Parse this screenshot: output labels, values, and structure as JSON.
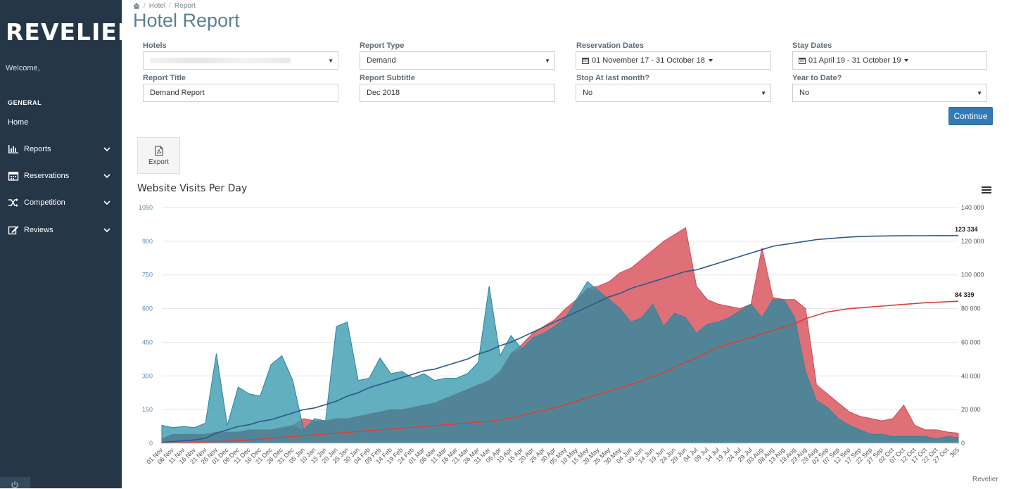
{
  "sidebar": {
    "logo": "REVELIER",
    "welcome": "Welcome,",
    "section": "GENERAL",
    "home": "Home",
    "items": [
      {
        "label": "Reports",
        "icon": "bar-chart-icon"
      },
      {
        "label": "Reservations",
        "icon": "calendar-icon"
      },
      {
        "label": "Competition",
        "icon": "shuffle-icon"
      },
      {
        "label": "Reviews",
        "icon": "edit-icon"
      }
    ]
  },
  "breadcrumb": {
    "items": [
      "Hotel",
      "Report"
    ]
  },
  "page_title": "Hotel Report",
  "form": {
    "hotels_label": "Hotels",
    "report_type_label": "Report Type",
    "report_type_value": "Demand",
    "reservation_dates_label": "Reservation Dates",
    "reservation_dates_value": "01 November 17 - 31 October 18",
    "stay_dates_label": "Stay Dates",
    "stay_dates_value": "01 April 19 - 31 October 19",
    "report_title_label": "Report Title",
    "report_title_value": "Demand Report",
    "report_subtitle_label": "Report Subtitle",
    "report_subtitle_value": "Dec 2018",
    "stop_label": "Stop At last month?",
    "stop_value": "No",
    "ytd_label": "Year to Date?",
    "ytd_value": "No",
    "continue_label": "Continue"
  },
  "export_label": "Export",
  "credit": "Revelier",
  "colors": {
    "sidebar": "#253647",
    "teal": "#3b9bb0",
    "red": "#d9575f",
    "blue_line": "#2b5a8c",
    "red_line": "#d9403a",
    "button": "#337ab7"
  },
  "chart_data": {
    "type": "area",
    "title": "Website Visits Per Day",
    "ylim_left": [
      0,
      1050
    ],
    "yticks_left": [
      "1050",
      "900",
      "750",
      "600",
      "450",
      "300",
      "150",
      "0"
    ],
    "ylim_right": [
      0,
      140000
    ],
    "yticks_right": [
      "140 000",
      "120 000",
      "100 000",
      "80 000",
      "60 000",
      "40 000",
      "20 000",
      "0"
    ],
    "x_labels": [
      "01 Nov",
      "06 Nov",
      "11 Nov",
      "16 Nov",
      "21 Nov",
      "26 Nov",
      "01 Dec",
      "06 Dec",
      "11 Dec",
      "16 Dec",
      "21 Dec",
      "26 Dec",
      "31 Dec",
      "05 Jan",
      "10 Jan",
      "15 Jan",
      "20 Jan",
      "25 Jan",
      "30 Jan",
      "04 Feb",
      "09 Feb",
      "14 Feb",
      "19 Feb",
      "24 Feb",
      "01 Mar",
      "06 Mar",
      "11 Mar",
      "16 Mar",
      "21 Mar",
      "26 Mar",
      "31 Mar",
      "05 Apr",
      "10 Apr",
      "15 Apr",
      "20 Apr",
      "25 Apr",
      "30 Apr",
      "05 May",
      "10 May",
      "15 May",
      "20 May",
      "25 May",
      "30 May",
      "04 Jun",
      "09 Jun",
      "14 Jun",
      "19 Jun",
      "24 Jun",
      "29 Jun",
      "04 Jul",
      "09 Jul",
      "14 Jul",
      "19 Jul",
      "24 Jul",
      "29 Jul",
      "03 Aug",
      "08 Aug",
      "13 Aug",
      "18 Aug",
      "23 Aug",
      "28 Aug",
      "02 Sep",
      "07 Sep",
      "12 Sep",
      "17 Sep",
      "22 Sep",
      "27 Sep",
      "02 Oct",
      "07 Oct",
      "12 Oct",
      "17 Oct",
      "22 Oct",
      "27 Oct",
      "365"
    ],
    "series": [
      {
        "values": [
          80,
          70,
          75,
          70,
          90,
          400,
          80,
          250,
          220,
          210,
          350,
          390,
          280,
          60,
          110,
          100,
          520,
          540,
          280,
          290,
          380,
          310,
          320,
          290,
          310,
          280,
          290,
          290,
          310,
          360,
          700,
          390,
          480,
          420,
          470,
          490,
          520,
          560,
          640,
          720,
          680,
          640,
          600,
          540,
          560,
          620,
          520,
          580,
          560,
          490,
          530,
          540,
          560,
          590,
          620,
          560,
          640,
          640,
          560,
          320,
          190,
          160,
          110,
          80,
          60,
          40,
          40,
          30,
          30,
          30,
          30,
          20,
          30,
          25
        ]
      },
      {
        "values": [
          20,
          40,
          40,
          40,
          40,
          50,
          50,
          50,
          60,
          60,
          60,
          70,
          80,
          110,
          100,
          100,
          110,
          110,
          120,
          130,
          140,
          150,
          150,
          160,
          170,
          180,
          200,
          220,
          240,
          260,
          280,
          320,
          400,
          440,
          490,
          520,
          550,
          600,
          640,
          690,
          700,
          720,
          760,
          780,
          820,
          860,
          900,
          930,
          960,
          700,
          640,
          620,
          610,
          600,
          620,
          870,
          650,
          640,
          640,
          600,
          260,
          220,
          180,
          140,
          120,
          110,
          100,
          110,
          170,
          80,
          60,
          60,
          50,
          45
        ]
      },
      {
        "values": [
          500,
          1000,
          1500,
          2000,
          3000,
          6000,
          8000,
          10000,
          11000,
          13000,
          14000,
          16000,
          18000,
          20000,
          21000,
          23000,
          25000,
          28000,
          30000,
          33000,
          35000,
          37000,
          39000,
          41000,
          43000,
          44000,
          46000,
          48000,
          50000,
          53000,
          55000,
          58000,
          60000,
          63000,
          66000,
          69000,
          72000,
          75000,
          78000,
          81000,
          84000,
          87000,
          89000,
          92000,
          94000,
          96000,
          98000,
          100000,
          102000,
          103000,
          105000,
          107000,
          109000,
          111000,
          113000,
          115000,
          117000,
          118000,
          119000,
          120000,
          121000,
          121500,
          122000,
          122500,
          122800,
          123000,
          123100,
          123200,
          123250,
          123280,
          123300,
          123320,
          123330,
          123334
        ]
      },
      {
        "values": [
          100,
          200,
          300,
          500,
          700,
          1000,
          1200,
          1500,
          2000,
          2500,
          3000,
          3500,
          4000,
          4500,
          5000,
          5500,
          6000,
          6500,
          7000,
          7500,
          8000,
          8500,
          9000,
          9500,
          10000,
          10500,
          11000,
          11500,
          12000,
          12500,
          13000,
          14000,
          15000,
          16500,
          18000,
          19500,
          21000,
          23000,
          25000,
          27000,
          29000,
          31000,
          33000,
          35000,
          37000,
          39500,
          42000,
          45000,
          48000,
          51000,
          54000,
          57000,
          59000,
          61000,
          63000,
          65000,
          67000,
          69000,
          71000,
          74000,
          76000,
          78000,
          79000,
          80000,
          80500,
          81000,
          81500,
          82000,
          82500,
          83000,
          83500,
          83800,
          84100,
          84339
        ]
      }
    ],
    "end_labels": [
      "123 334",
      "84 339"
    ],
    "grid": true
  }
}
